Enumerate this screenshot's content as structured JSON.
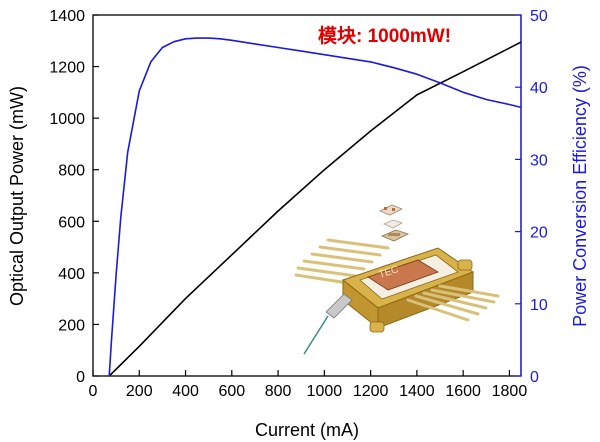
{
  "chart_data": {
    "type": "line",
    "annotation": "模块: 1000mW!",
    "xlabel": "Current (mA)",
    "ylabel_left": "Optical Output Power (mW)",
    "ylabel_right": "Power Conversion Efficiency (%)",
    "xlim": [
      0,
      1850
    ],
    "ylim_left": [
      0,
      1400
    ],
    "ylim_right": [
      0,
      50
    ],
    "x_ticks": [
      0,
      200,
      400,
      600,
      800,
      1000,
      1200,
      1400,
      1600,
      1800
    ],
    "y_left_ticks": [
      0,
      200,
      400,
      600,
      800,
      1000,
      1200,
      1400
    ],
    "y_right_ticks": [
      0,
      10,
      20,
      30,
      40,
      50
    ],
    "grid": false,
    "legend": "none",
    "colors": {
      "power": "#000000",
      "efficiency": "#1a1adf",
      "annotation": "#e00000",
      "right_axis": "#1a1adf"
    },
    "series": [
      {
        "axis": "left",
        "color": "#000000",
        "x": [
          70,
          200,
          400,
          600,
          800,
          1000,
          1200,
          1400,
          1600,
          1850
        ],
        "y": [
          0,
          115,
          300,
          470,
          640,
          800,
          950,
          1090,
          1180,
          1295
        ]
      },
      {
        "axis": "right",
        "color": "#1a1adf",
        "x": [
          70,
          80,
          100,
          120,
          150,
          200,
          250,
          300,
          350,
          400,
          450,
          500,
          550,
          600,
          700,
          800,
          900,
          1000,
          1100,
          1200,
          1300,
          1400,
          1500,
          1600,
          1700,
          1800,
          1850
        ],
        "y": [
          0,
          5,
          14,
          22,
          31,
          39.5,
          43.5,
          45.5,
          46.3,
          46.7,
          46.8,
          46.8,
          46.7,
          46.5,
          46.0,
          45.5,
          45.0,
          44.5,
          44.0,
          43.5,
          42.7,
          41.8,
          40.6,
          39.3,
          38.3,
          37.6,
          37.2
        ]
      }
    ]
  },
  "inset_image": {
    "description_icon": "laser-module-package-icon",
    "chip_label": "TEC"
  }
}
